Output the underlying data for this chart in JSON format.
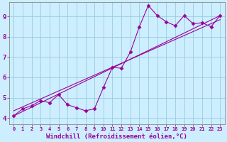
{
  "xlabel": "Windchill (Refroidissement éolien,°C)",
  "bg_color": "#cceeff",
  "grid_color": "#99ccdd",
  "line_color": "#990099",
  "xlim": [
    -0.5,
    23.5
  ],
  "ylim": [
    3.7,
    9.7
  ],
  "yticks": [
    4,
    5,
    6,
    7,
    8,
    9
  ],
  "xticks": [
    0,
    1,
    2,
    3,
    4,
    5,
    6,
    7,
    8,
    9,
    10,
    11,
    12,
    13,
    14,
    15,
    16,
    17,
    18,
    19,
    20,
    21,
    22,
    23
  ],
  "line1_x": [
    0,
    1,
    2,
    3,
    4,
    5,
    6,
    7,
    8,
    9,
    10,
    11,
    12,
    13,
    14,
    15,
    16,
    17,
    18,
    19,
    20,
    21,
    22,
    23
  ],
  "line1_y": [
    4.1,
    4.45,
    4.6,
    4.85,
    4.75,
    5.15,
    4.65,
    4.5,
    4.35,
    4.45,
    5.5,
    6.5,
    6.45,
    7.25,
    8.5,
    9.55,
    9.05,
    8.75,
    8.55,
    9.05,
    8.65,
    8.7,
    8.5,
    9.05
  ],
  "line2_x": [
    0,
    23
  ],
  "line2_y": [
    4.1,
    9.05
  ],
  "line3_x": [
    0,
    23
  ],
  "line3_y": [
    4.35,
    8.85
  ],
  "marker_size": 2.5,
  "linewidth": 0.8,
  "xlabel_fontsize": 6.5,
  "tick_fontsize_x": 5.0,
  "tick_fontsize_y": 6.5
}
